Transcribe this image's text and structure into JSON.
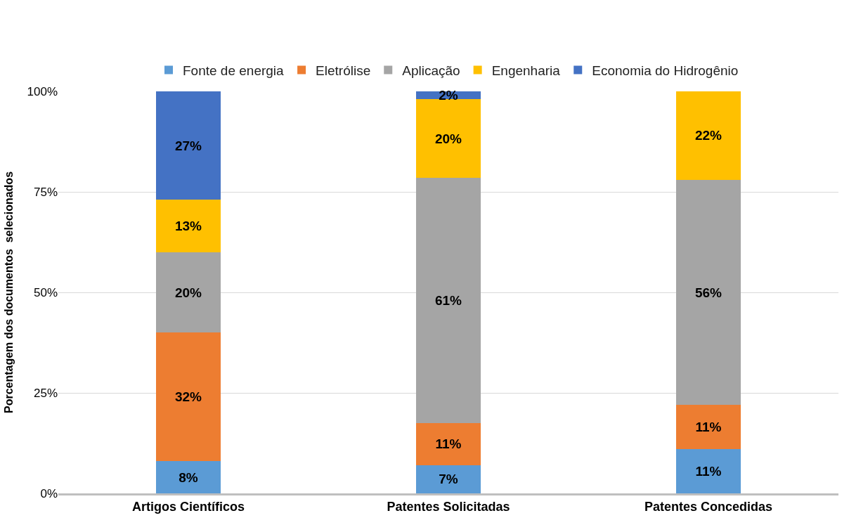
{
  "chart_data": {
    "type": "bar",
    "stacked": true,
    "categories": [
      "Artigos Científicos",
      "Patentes Solicitadas",
      "Patentes Concedidas"
    ],
    "ylabel": "Porcentagem dos documentos  selecionados",
    "ylim": [
      0,
      100
    ],
    "yticks": [
      {
        "value": 0,
        "label": "0%"
      },
      {
        "value": 25,
        "label": "25%"
      },
      {
        "value": 50,
        "label": "50%"
      },
      {
        "value": 75,
        "label": "75%"
      },
      {
        "value": 100,
        "label": "100%"
      }
    ],
    "grid": "y",
    "legend": "top",
    "series": [
      {
        "name": "Fonte de energia",
        "color": "#5b9bd5",
        "values": [
          8,
          7,
          11
        ],
        "value_labels": [
          "8%",
          "7%",
          "11%"
        ]
      },
      {
        "name": "Eletrólise",
        "color": "#ed7d31",
        "values": [
          32,
          10.5,
          11
        ],
        "value_labels": [
          "32%",
          "11%",
          "11%"
        ]
      },
      {
        "name": "Aplicação",
        "color": "#a5a5a5",
        "values": [
          20,
          61,
          56
        ],
        "value_labels": [
          "20%",
          "61%",
          "56%"
        ]
      },
      {
        "name": "Engenharia",
        "color": "#ffc000",
        "values": [
          13,
          19.5,
          22
        ],
        "value_labels": [
          "13%",
          "20%",
          "22%"
        ]
      },
      {
        "name": "Economia do Hidrogênio",
        "color": "#4472c4",
        "values": [
          27,
          2,
          null
        ],
        "value_labels": [
          "27%",
          "2%",
          null
        ]
      }
    ]
  }
}
